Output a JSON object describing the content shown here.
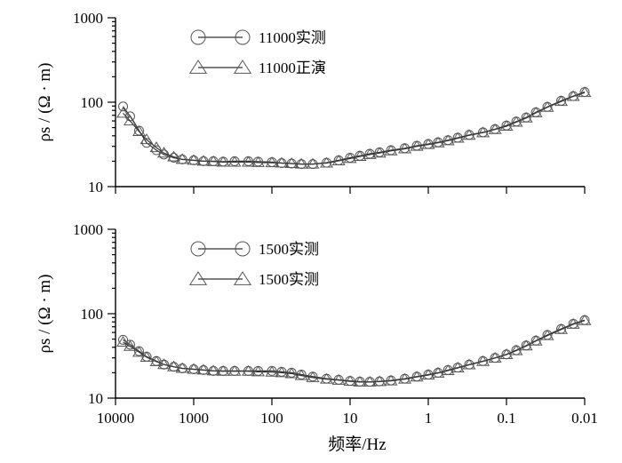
{
  "chart_data": [
    {
      "type": "line",
      "xlabel": "频率/Hz",
      "ylabel": "ρs / (Ω · m)",
      "x_scale": "log",
      "y_scale": "log",
      "x_reversed": true,
      "xlim": [
        10000,
        0.01
      ],
      "ylim": [
        10,
        1000
      ],
      "x_ticks": [
        "10000",
        "1000",
        "100",
        "10",
        "1",
        "0.1",
        "0.01"
      ],
      "y_ticks": [
        "1000",
        "100",
        "10"
      ],
      "grid": false,
      "legend_position": "top-left",
      "x": [
        8000,
        6500,
        5000,
        4000,
        3000,
        2400,
        1800,
        1400,
        1000,
        750,
        560,
        420,
        300,
        200,
        150,
        100,
        75,
        56,
        42,
        30,
        20,
        14,
        10,
        7.5,
        5.6,
        4.2,
        3,
        2,
        1.4,
        1,
        0.75,
        0.56,
        0.42,
        0.3,
        0.2,
        0.14,
        0.1,
        0.075,
        0.056,
        0.042,
        0.03,
        0.02,
        0.014,
        0.01
      ],
      "series": [
        {
          "name": "11000实测",
          "marker": "circle",
          "values": [
            89,
            68,
            46,
            33,
            27,
            24,
            22,
            21,
            20.5,
            20,
            20,
            19.8,
            20,
            20,
            19.8,
            19.5,
            19,
            18.8,
            18.5,
            18.5,
            19.2,
            20.5,
            22,
            23.2,
            24.5,
            25.5,
            27,
            28.5,
            30.5,
            32,
            33.5,
            35.5,
            38,
            41,
            44,
            48,
            53,
            59,
            66,
            76,
            88,
            104,
            118,
            132
          ]
        },
        {
          "name": "11000正演",
          "marker": "triangle",
          "values": [
            74,
            60,
            45,
            36,
            29,
            25,
            22.5,
            21,
            20.5,
            20,
            19.8,
            19.5,
            19.5,
            19.5,
            19.3,
            19.2,
            19,
            18.8,
            18.5,
            18.5,
            19,
            20.2,
            21.5,
            22.8,
            24,
            25,
            26.5,
            28,
            30,
            31.5,
            33,
            35,
            37.5,
            40.5,
            43.5,
            47.5,
            52,
            58,
            65,
            75,
            87,
            102,
            117,
            130
          ]
        }
      ]
    },
    {
      "type": "line",
      "xlabel": "频率/Hz",
      "ylabel": "ρs / (Ω · m)",
      "x_scale": "log",
      "y_scale": "log",
      "x_reversed": true,
      "xlim": [
        10000,
        0.01
      ],
      "ylim": [
        10,
        1000
      ],
      "x_ticks": [
        "10000",
        "1000",
        "100",
        "10",
        "1",
        "0.1",
        "0.01"
      ],
      "y_ticks": [
        "1000",
        "100",
        "10"
      ],
      "grid": false,
      "legend_position": "top-left",
      "x": [
        8000,
        6500,
        5000,
        4000,
        3000,
        2400,
        1800,
        1400,
        1000,
        750,
        560,
        420,
        300,
        200,
        150,
        100,
        75,
        56,
        42,
        30,
        20,
        14,
        10,
        7.5,
        5.6,
        4.2,
        3,
        2,
        1.4,
        1,
        0.75,
        0.56,
        0.42,
        0.3,
        0.2,
        0.14,
        0.1,
        0.075,
        0.056,
        0.042,
        0.03,
        0.02,
        0.014,
        0.01
      ],
      "series": [
        {
          "name": "1500实测",
          "marker": "circle",
          "values": [
            49,
            43,
            36,
            31,
            27.5,
            25,
            23.5,
            22.5,
            22,
            21.5,
            21,
            21,
            21,
            21,
            21,
            21,
            20.5,
            20,
            19,
            18,
            17,
            16.5,
            16,
            15.7,
            15.6,
            15.8,
            16.2,
            17,
            18,
            19,
            20,
            21.5,
            23,
            25,
            27.5,
            30,
            33,
            37,
            42,
            48,
            56,
            66,
            76,
            84
          ]
        },
        {
          "name": "1500实测",
          "marker": "triangle",
          "values": [
            46,
            41,
            35,
            30.5,
            27,
            25,
            23.5,
            22.5,
            22,
            21.5,
            21,
            20.8,
            20.8,
            20.8,
            20.5,
            20.3,
            20,
            19.5,
            18.5,
            17.5,
            16.8,
            16.3,
            15.8,
            15.5,
            15.5,
            15.7,
            16,
            16.8,
            17.8,
            18.8,
            19.8,
            21.2,
            22.8,
            24.8,
            27.2,
            29.8,
            32.8,
            36.5,
            41.5,
            47.5,
            55,
            65,
            75,
            83
          ]
        }
      ]
    }
  ]
}
